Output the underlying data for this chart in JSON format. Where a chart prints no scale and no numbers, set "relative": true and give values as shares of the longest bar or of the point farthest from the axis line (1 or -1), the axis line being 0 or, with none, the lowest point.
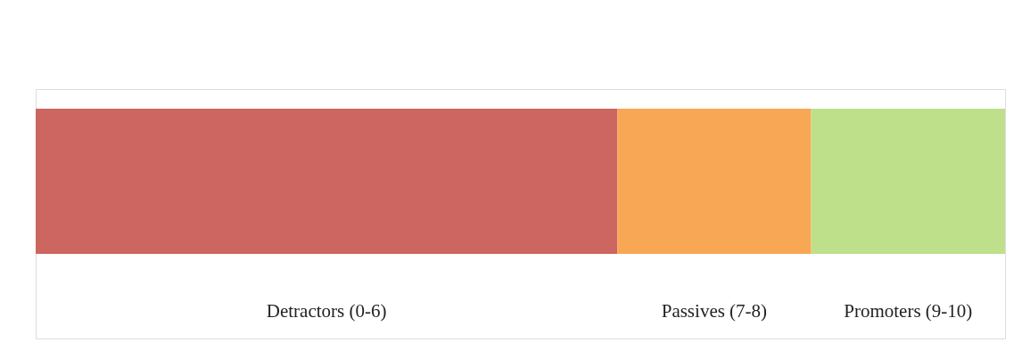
{
  "chart_data": {
    "type": "bar",
    "orientation": "horizontal",
    "stacked": true,
    "relative": true,
    "categories": [
      null
    ],
    "series": [
      {
        "name": "Detractors (0-6)",
        "color": "#cd6660",
        "values": [
          0.6
        ]
      },
      {
        "name": "Passives (7-8)",
        "color": "#f8a755",
        "values": [
          0.2
        ]
      },
      {
        "name": "Promoters (9-10)",
        "color": "#bfe08a",
        "values": [
          0.2
        ]
      }
    ]
  }
}
